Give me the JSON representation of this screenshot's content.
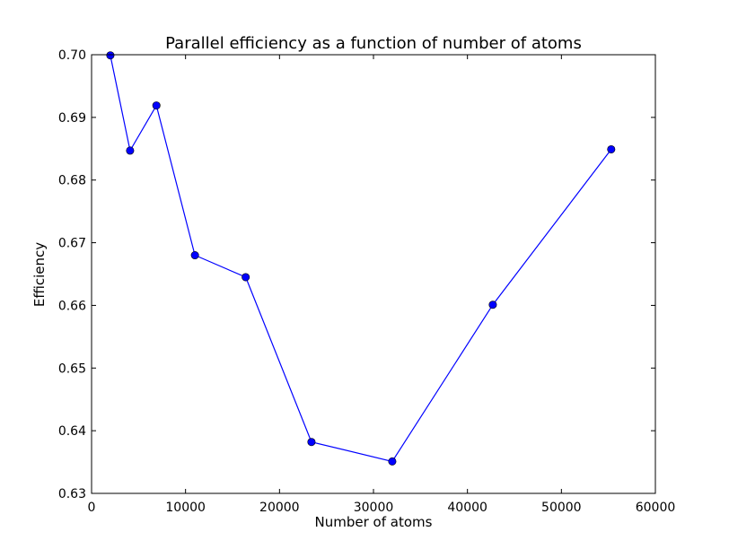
{
  "chart_data": {
    "type": "line",
    "title": "Parallel efficiency as a function of number of atoms",
    "xlabel": "Number of atoms",
    "ylabel": "Efficiency",
    "xlim": [
      0,
      60000
    ],
    "ylim": [
      0.63,
      0.7
    ],
    "xticks": [
      "0",
      "10000",
      "20000",
      "30000",
      "40000",
      "50000",
      "60000"
    ],
    "yticks": [
      "0.63",
      "0.64",
      "0.65",
      "0.66",
      "0.67",
      "0.68",
      "0.69",
      "0.70"
    ],
    "grid": false,
    "series": [
      {
        "color": "#0000ff",
        "marker": "circle",
        "x": [
          2000,
          4100,
          6900,
          11000,
          16400,
          23400,
          32000,
          42700,
          55300
        ],
        "y": [
          0.6999,
          0.6847,
          0.6919,
          0.668,
          0.6645,
          0.6382,
          0.6351,
          0.6601,
          0.6849
        ]
      }
    ]
  }
}
